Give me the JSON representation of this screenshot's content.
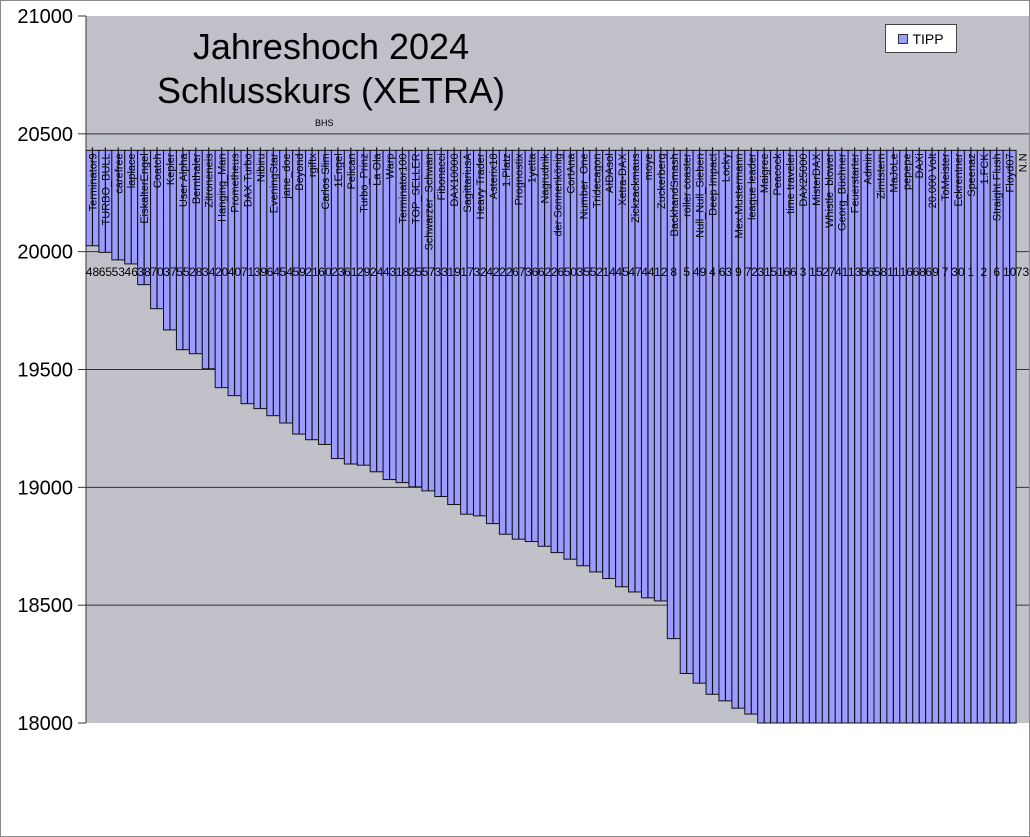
{
  "chart_data": {
    "type": "bar",
    "title": [
      "Jahreshoch 2024",
      "Schlusskurs (XETRA)"
    ],
    "annotation": "BHS",
    "legend": {
      "entries": [
        "TIPP"
      ],
      "placement": "top-right"
    },
    "series": [
      {
        "name": "TIPP",
        "color": "#9c9cff"
      }
    ],
    "ylim": [
      18000,
      21000
    ],
    "yticks": [
      "21000",
      "20500",
      "20000",
      "19500",
      "19000",
      "18500",
      "18000"
    ],
    "ytick_values": [
      21000,
      20500,
      20000,
      19500,
      19000,
      18500,
      18000
    ],
    "bar_base": 20430,
    "grid": true,
    "categories": [
      "Terminator9",
      "TURBO_BULL",
      "carefree",
      "laplace",
      "EiskalterEngel",
      "Coatch",
      "Kepler",
      "User Alpha",
      "Bernthaler",
      "Zitroneneis",
      "Hanging_Man",
      "Prometheus",
      "DAX Turbo",
      "Nibiru",
      "EveningStar",
      "jane_doe",
      "Beyond",
      "rgiftx",
      "Carlos Slim",
      "1Engel",
      "Pelican",
      "Turbo_Prinz",
      "La Ola",
      "Warp",
      "Terminator100",
      "TOP_SELLER",
      "Schwarzer_Schwan",
      "Fibonacci",
      "DAX10000",
      "SagittariusA",
      "Heavy Trader",
      "Asterix18",
      "1.Platz",
      "Prognostix",
      "1yetta",
      "Nagrudnik",
      "der Sonnenkönig",
      "CortAna",
      "Number_One",
      "Tridecagon",
      "AIDAsol",
      "Xetra-DAX",
      "Zickzackmaus",
      "moye",
      "Zuckerberg",
      "BackhandSmash",
      "roller coaster",
      "Null_Null_Sieben",
      "Deep Impact",
      "Locky",
      "Mex.Mustermann",
      "league leader",
      "Maigree",
      "Peacock",
      "time traveler",
      "DAX25000",
      "MisterDAX",
      "Whistle_blower",
      "Georg_Büchner",
      "Feuerstarter",
      "Admin",
      "Zimtstern",
      "MaJoLe",
      "pepepe",
      "DAXi",
      "20.000 Volt",
      "ToMeister",
      "Eckrentner",
      "Speenaz",
      "1.FCK",
      "Straight Flush",
      "Floyd07",
      "N.N"
    ],
    "numbers": [
      "48",
      "65",
      "53",
      "46",
      "38",
      "70",
      "37",
      "55",
      "28",
      "34",
      "20",
      "40",
      "71",
      "39",
      "64",
      "54",
      "59",
      "21",
      "60",
      "23",
      "61",
      "29",
      "24",
      "43",
      "18",
      "25",
      "57",
      "33",
      "19",
      "17",
      "32",
      "42",
      "22",
      "67",
      "36",
      "62",
      "26",
      "50",
      "35",
      "52",
      "14",
      "45",
      "47",
      "44",
      "12",
      "8",
      "5",
      "49",
      "4",
      "63",
      "9",
      "72",
      "31",
      "51",
      "66",
      "3",
      "15",
      "27",
      "41",
      "13",
      "56",
      "58",
      "11",
      "16",
      "68",
      "69",
      "7",
      "30",
      "1",
      "2",
      "6",
      "10",
      "73"
    ],
    "values": [
      20025,
      19997,
      19965,
      19948,
      19860,
      19758,
      19668,
      19584,
      19567,
      19503,
      19423,
      19389,
      19355,
      19334,
      19304,
      19273,
      19226,
      19202,
      19182,
      19122,
      19099,
      19094,
      19066,
      19033,
      19020,
      19002,
      18985,
      18961,
      18927,
      18886,
      18879,
      18846,
      18801,
      18780,
      18770,
      18750,
      18723,
      18695,
      18667,
      18641,
      18613,
      18578,
      18556,
      18531,
      18518,
      18358,
      18210,
      18169,
      18122,
      18094,
      18063,
      18038,
      18000,
      18000,
      18000,
      18000,
      18000,
      18000,
      18000,
      18000,
      18000,
      18000,
      18000,
      18000,
      18000,
      18000,
      18000,
      18000,
      18000,
      18000,
      18000,
      18000,
      null
    ]
  }
}
